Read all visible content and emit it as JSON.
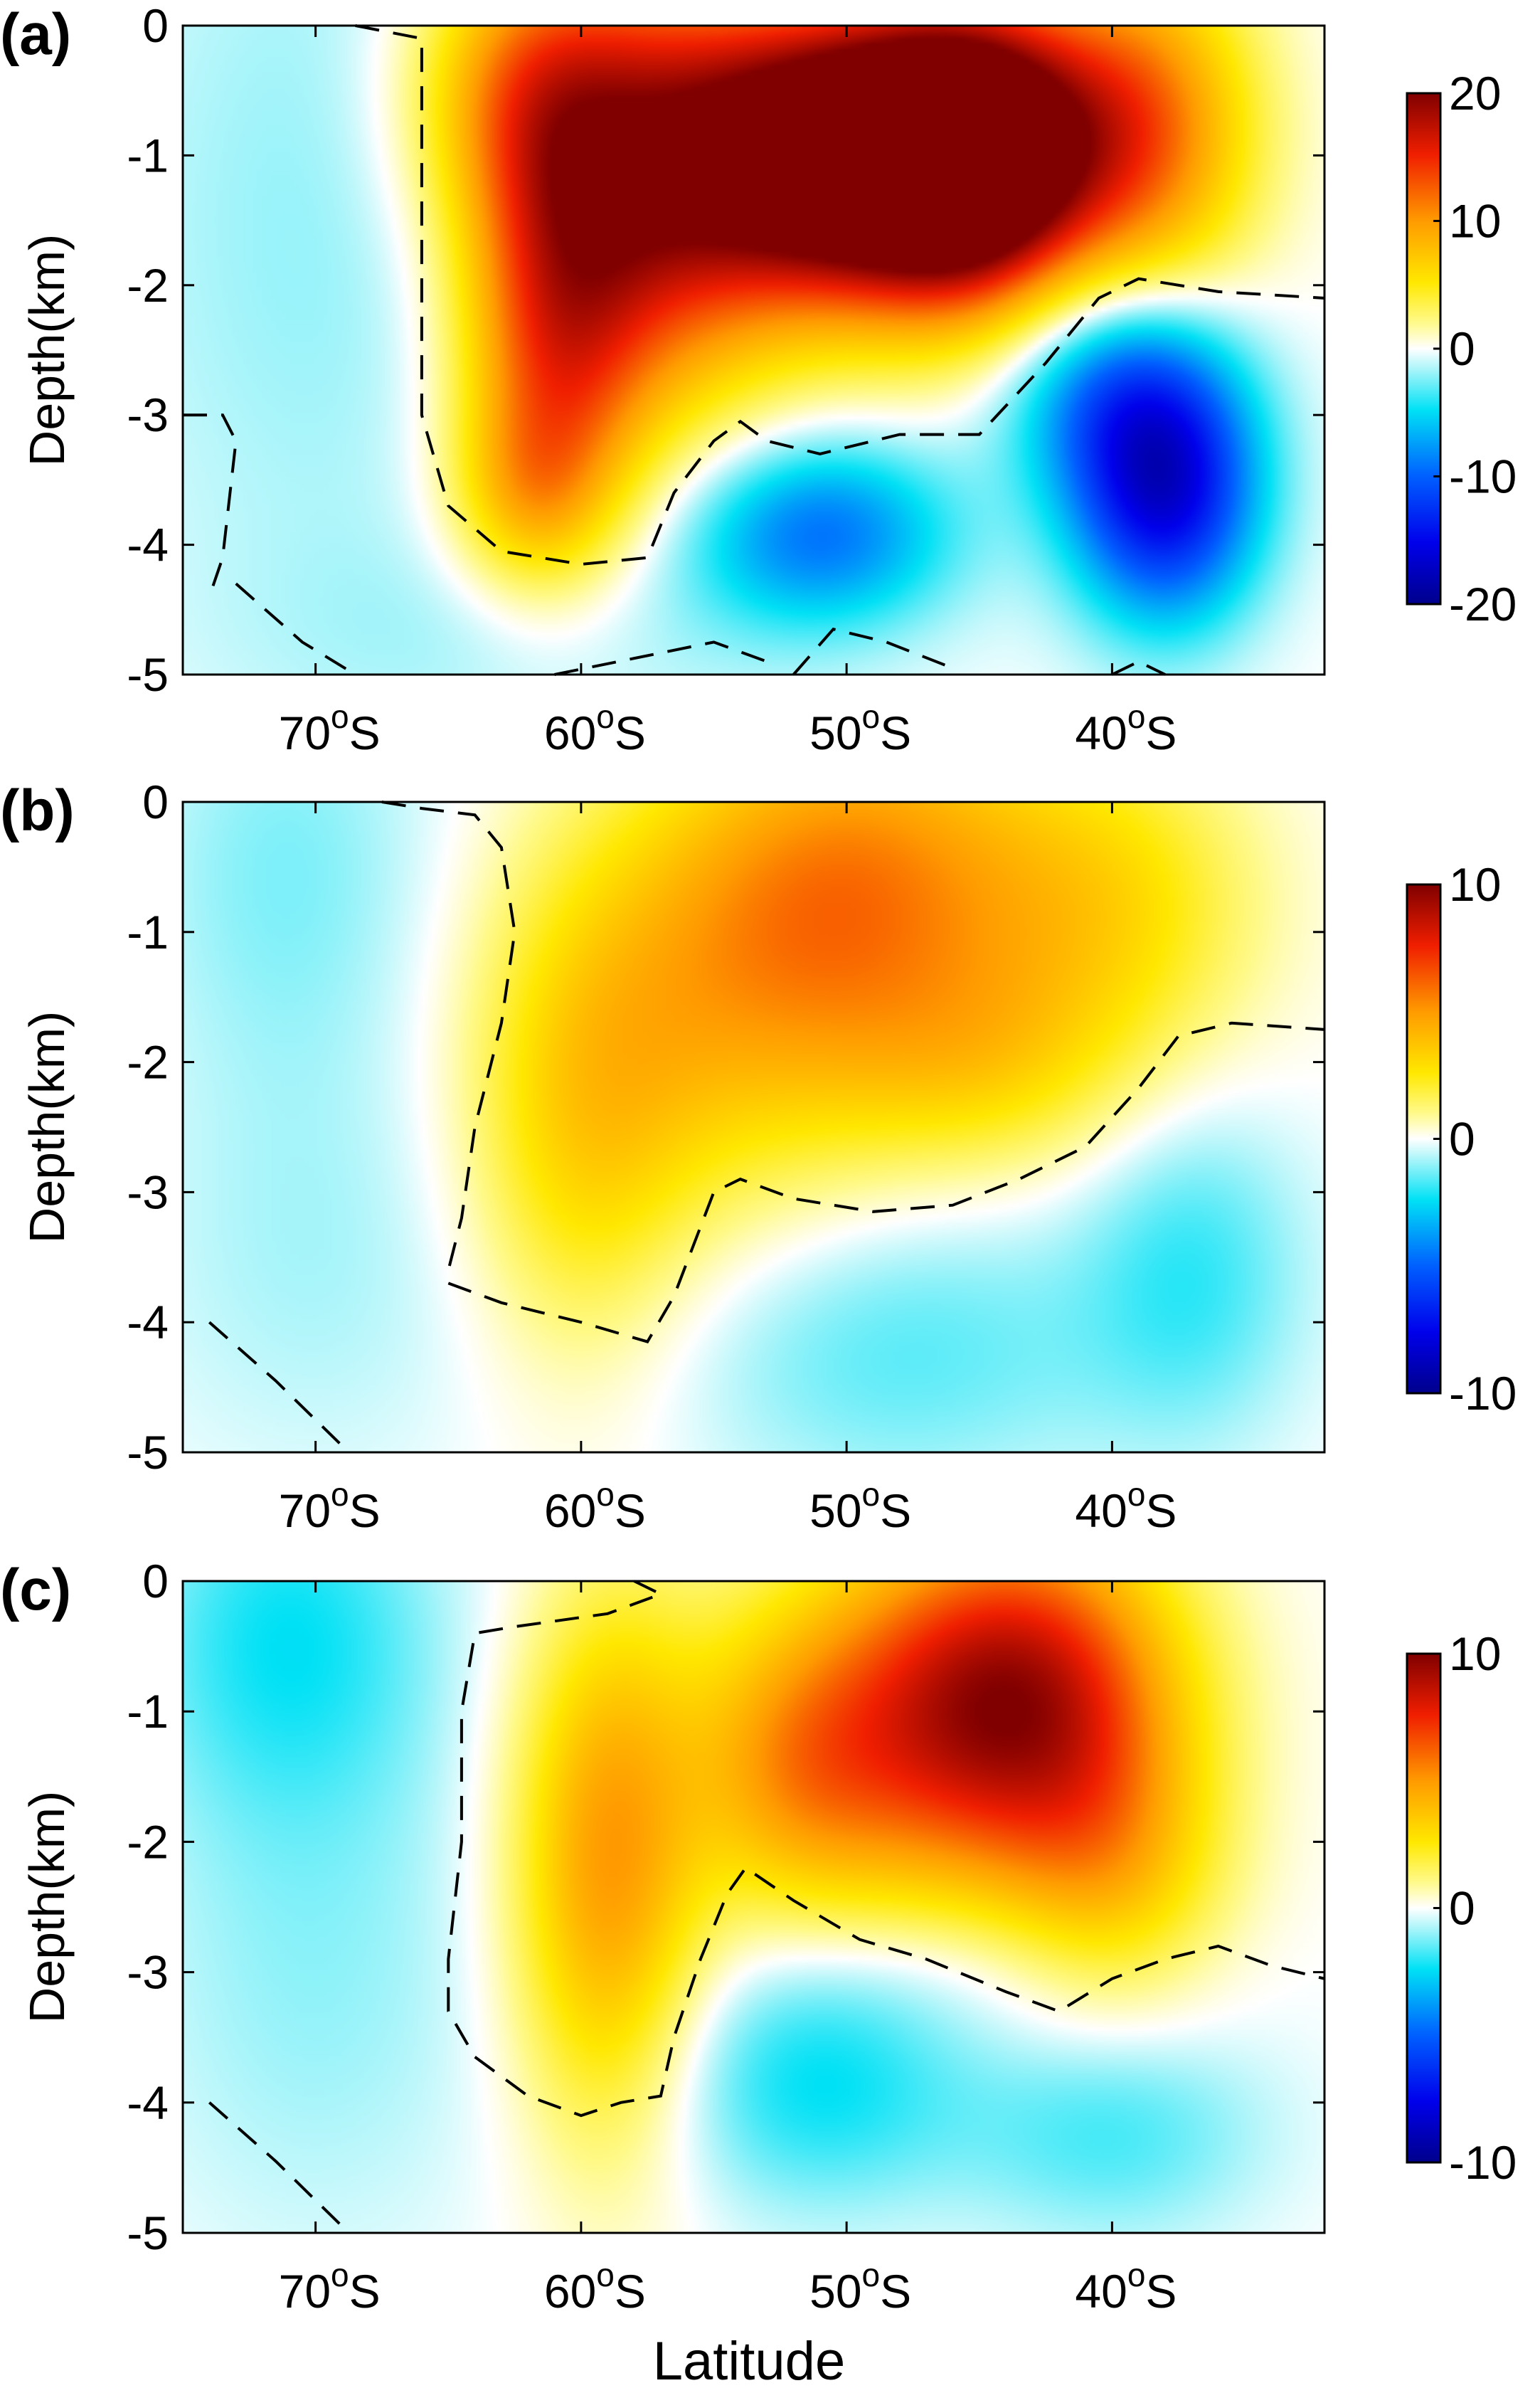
{
  "figure": {
    "xlabel": "Latitude"
  },
  "chart_data": [
    {
      "type": "heatmap",
      "panel_label": "(a)",
      "ylabel": "Depth(km)",
      "x_range": [
        -75,
        -32
      ],
      "ylim": [
        -5,
        0
      ],
      "xticks": [
        -70,
        -60,
        -50,
        -40
      ],
      "xtick_labels": [
        {
          "num": "70",
          "deg": "o",
          "hemi": "S"
        },
        {
          "num": "60",
          "deg": "o",
          "hemi": "S"
        },
        {
          "num": "50",
          "deg": "o",
          "hemi": "S"
        },
        {
          "num": "40",
          "deg": "o",
          "hemi": "S"
        }
      ],
      "yticks": [
        0,
        -1,
        -2,
        -3,
        -4,
        -5
      ],
      "ytick_labels": [
        "0",
        "-1",
        "-2",
        "-3",
        "-4",
        "-5"
      ],
      "colorbar": {
        "min": -20,
        "max": 20,
        "ticks": [
          20,
          10,
          0,
          -10,
          -20
        ],
        "tick_labels": [
          "20",
          "10",
          "0",
          "-10",
          "-20"
        ],
        "colormap": "jet-white-center"
      },
      "features": [
        {
          "lat": -50,
          "depth": -1.0,
          "value": 26,
          "sx": 4,
          "sz": 0.8
        },
        {
          "lat": -45,
          "depth": -1.0,
          "value": 22,
          "sx": 3,
          "sz": 0.8
        },
        {
          "lat": -57,
          "depth": -1.2,
          "value": 14,
          "sx": 3.5,
          "sz": 1.2
        },
        {
          "lat": -61,
          "depth": -2.4,
          "value": 12,
          "sx": 2.5,
          "sz": 1.1
        },
        {
          "lat": -62,
          "depth": -0.5,
          "value": 10,
          "sx": 3,
          "sz": 0.8
        },
        {
          "lat": -39,
          "depth": -0.8,
          "value": 12,
          "sx": 3,
          "sz": 0.9
        },
        {
          "lat": -62,
          "depth": -3.6,
          "value": 5,
          "sx": 2,
          "sz": 0.5
        },
        {
          "lat": -38,
          "depth": -3.6,
          "value": -15,
          "sx": 2.5,
          "sz": 0.7
        },
        {
          "lat": -40,
          "depth": -2.8,
          "value": -8,
          "sx": 3,
          "sz": 0.6
        },
        {
          "lat": -51,
          "depth": -3.9,
          "value": -9,
          "sx": 3.5,
          "sz": 0.5
        },
        {
          "lat": -70,
          "depth": -1.5,
          "value": -2,
          "sx": 6,
          "sz": 2.5
        },
        {
          "lat": -60,
          "depth": -4.7,
          "value": -1.5,
          "sx": 8,
          "sz": 0.6
        }
      ],
      "zero_contours": [
        [
          [
            -68.5,
            0
          ],
          [
            -66,
            -0.1
          ],
          [
            -66,
            -1.5
          ],
          [
            -66,
            -3.0
          ],
          [
            -65,
            -3.7
          ],
          [
            -63,
            -4.05
          ],
          [
            -60,
            -4.15
          ],
          [
            -57.5,
            -4.1
          ],
          [
            -56.5,
            -3.6
          ],
          [
            -55,
            -3.2
          ],
          [
            -54,
            -3.05
          ],
          [
            -53,
            -3.2
          ],
          [
            -51,
            -3.3
          ],
          [
            -48,
            -3.15
          ],
          [
            -45,
            -3.15
          ],
          [
            -42.5,
            -2.6
          ],
          [
            -40.5,
            -2.1
          ],
          [
            -39,
            -1.95
          ],
          [
            -36,
            -2.05
          ],
          [
            -32,
            -2.1
          ]
        ],
        [
          [
            -75,
            -3.0
          ],
          [
            -73.5,
            -3.0
          ],
          [
            -73,
            -3.2
          ],
          [
            -73.5,
            -4.1
          ],
          [
            -74,
            -4.4
          ]
        ],
        [
          [
            -73,
            -4.3
          ],
          [
            -70.5,
            -4.75
          ],
          [
            -68.5,
            -5.0
          ]
        ],
        [
          [
            -61,
            -5.0
          ],
          [
            -55,
            -4.75
          ],
          [
            -53,
            -4.9
          ]
        ],
        [
          [
            -52,
            -5.0
          ],
          [
            -50.5,
            -4.65
          ],
          [
            -48.5,
            -4.75
          ],
          [
            -46,
            -4.95
          ]
        ],
        [
          [
            -40,
            -5.0
          ],
          [
            -39,
            -4.9
          ],
          [
            -38,
            -5.0
          ]
        ]
      ]
    },
    {
      "type": "heatmap",
      "panel_label": "(b)",
      "ylabel": "Depth(km)",
      "x_range": [
        -75,
        -32
      ],
      "ylim": [
        -5,
        0
      ],
      "xticks": [
        -70,
        -60,
        -50,
        -40
      ],
      "xtick_labels": [
        {
          "num": "70",
          "deg": "o",
          "hemi": "S"
        },
        {
          "num": "60",
          "deg": "o",
          "hemi": "S"
        },
        {
          "num": "50",
          "deg": "o",
          "hemi": "S"
        },
        {
          "num": "40",
          "deg": "o",
          "hemi": "S"
        }
      ],
      "yticks": [
        0,
        -1,
        -2,
        -3,
        -4,
        -5
      ],
      "ytick_labels": [
        "0",
        "-1",
        "-2",
        "-3",
        "-4",
        "-5"
      ],
      "colorbar": {
        "min": -10,
        "max": 10,
        "ticks": [
          10,
          0,
          -10
        ],
        "tick_labels": [
          "10",
          "0",
          "-10"
        ],
        "colormap": "jet-white-center"
      },
      "features": [
        {
          "lat": -49,
          "depth": -0.6,
          "value": 4.5,
          "sx": 5,
          "sz": 1.0
        },
        {
          "lat": -55,
          "depth": -1.5,
          "value": 3.2,
          "sx": 5,
          "sz": 1.2
        },
        {
          "lat": -60,
          "depth": -2.6,
          "value": 2.5,
          "sx": 3,
          "sz": 1.2
        },
        {
          "lat": -40,
          "depth": -0.8,
          "value": 2.5,
          "sx": 4,
          "sz": 0.9
        },
        {
          "lat": -45,
          "depth": -2.0,
          "value": 2.0,
          "sx": 4,
          "sz": 0.6
        },
        {
          "lat": -48,
          "depth": -4.2,
          "value": -1.6,
          "sx": 6,
          "sz": 0.8
        },
        {
          "lat": -37,
          "depth": -3.6,
          "value": -1.8,
          "sx": 3,
          "sz": 0.9
        },
        {
          "lat": -71,
          "depth": -0.5,
          "value": -1.2,
          "sx": 4,
          "sz": 1.2
        },
        {
          "lat": -70,
          "depth": -3.5,
          "value": -0.8,
          "sx": 5,
          "sz": 1.2
        }
      ],
      "zero_contours": [
        [
          [
            -67.5,
            0
          ],
          [
            -66,
            -0.05
          ],
          [
            -64,
            -0.1
          ],
          [
            -63,
            -0.35
          ],
          [
            -62.5,
            -1.0
          ],
          [
            -63,
            -1.7
          ],
          [
            -64,
            -2.5
          ],
          [
            -64.5,
            -3.2
          ],
          [
            -65,
            -3.6
          ]
        ],
        [
          [
            -65,
            -3.7
          ],
          [
            -63,
            -3.85
          ],
          [
            -60,
            -4.0
          ],
          [
            -57.5,
            -4.15
          ],
          [
            -56.5,
            -3.8
          ],
          [
            -55,
            -3.0
          ],
          [
            -54,
            -2.9
          ],
          [
            -52,
            -3.05
          ],
          [
            -49,
            -3.15
          ],
          [
            -46,
            -3.1
          ],
          [
            -43.5,
            -2.9
          ],
          [
            -41,
            -2.65
          ],
          [
            -39,
            -2.2
          ],
          [
            -37.5,
            -1.8
          ],
          [
            -35.5,
            -1.7
          ],
          [
            -32,
            -1.75
          ]
        ],
        [
          [
            -74,
            -4.0
          ],
          [
            -71.5,
            -4.45
          ],
          [
            -69,
            -4.95
          ]
        ]
      ]
    },
    {
      "type": "heatmap",
      "panel_label": "(c)",
      "ylabel": "Depth(km)",
      "x_range": [
        -75,
        -32
      ],
      "ylim": [
        -5,
        0
      ],
      "xticks": [
        -70,
        -60,
        -50,
        -40
      ],
      "xtick_labels": [
        {
          "num": "70",
          "deg": "o",
          "hemi": "S"
        },
        {
          "num": "60",
          "deg": "o",
          "hemi": "S"
        },
        {
          "num": "50",
          "deg": "o",
          "hemi": "S"
        },
        {
          "num": "40",
          "deg": "o",
          "hemi": "S"
        }
      ],
      "yticks": [
        0,
        -1,
        -2,
        -3,
        -4,
        -5
      ],
      "ytick_labels": [
        "0",
        "-1",
        "-2",
        "-3",
        "-4",
        "-5"
      ],
      "colorbar": {
        "min": -10,
        "max": 10,
        "ticks": [
          10,
          0,
          -10
        ],
        "tick_labels": [
          "10",
          "0",
          "-10"
        ],
        "colormap": "jet-white-center"
      },
      "features": [
        {
          "lat": -43,
          "depth": -0.8,
          "value": 6.5,
          "sx": 4,
          "sz": 0.9
        },
        {
          "lat": -48,
          "depth": -1.2,
          "value": 5.0,
          "sx": 5,
          "sz": 1.0
        },
        {
          "lat": -59,
          "depth": -2.2,
          "value": 4.8,
          "sx": 2.5,
          "sz": 1.4
        },
        {
          "lat": -40,
          "depth": -2.2,
          "value": 3.0,
          "sx": 3,
          "sz": 0.8
        },
        {
          "lat": -52,
          "depth": -1.5,
          "value": 2.0,
          "sx": 2.5,
          "sz": 0.7
        },
        {
          "lat": -51,
          "depth": -3.8,
          "value": -2.5,
          "sx": 4,
          "sz": 0.7
        },
        {
          "lat": -40,
          "depth": -4.2,
          "value": -1.8,
          "sx": 4,
          "sz": 0.6
        },
        {
          "lat": -71,
          "depth": -0.4,
          "value": -2.2,
          "sx": 4,
          "sz": 1.0
        },
        {
          "lat": -70,
          "depth": -3.0,
          "value": -1.0,
          "sx": 5,
          "sz": 1.5
        },
        {
          "lat": -44,
          "depth": -2.9,
          "value": -0.7,
          "sx": 5,
          "sz": 0.4
        }
      ],
      "zero_contours": [
        [
          [
            -58,
            0
          ],
          [
            -57,
            -0.1
          ],
          [
            -59,
            -0.25
          ],
          [
            -62.5,
            -0.35
          ],
          [
            -64,
            -0.4
          ],
          [
            -64.5,
            -1.0
          ],
          [
            -64.5,
            -2.0
          ],
          [
            -65,
            -2.9
          ],
          [
            -65,
            -3.3
          ],
          [
            -64,
            -3.65
          ],
          [
            -62,
            -3.95
          ],
          [
            -60,
            -4.1
          ],
          [
            -58.5,
            -4.0
          ],
          [
            -57,
            -3.95
          ],
          [
            -56.5,
            -3.5
          ],
          [
            -55.5,
            -2.9
          ],
          [
            -54.5,
            -2.4
          ],
          [
            -53.8,
            -2.2
          ],
          [
            -52,
            -2.45
          ],
          [
            -49.5,
            -2.75
          ],
          [
            -47,
            -2.9
          ],
          [
            -44,
            -3.15
          ],
          [
            -42,
            -3.3
          ],
          [
            -40,
            -3.05
          ],
          [
            -38,
            -2.9
          ],
          [
            -36,
            -2.8
          ],
          [
            -34,
            -2.95
          ],
          [
            -32,
            -3.05
          ]
        ],
        [
          [
            -74,
            -4.0
          ],
          [
            -71.5,
            -4.45
          ],
          [
            -69,
            -4.95
          ]
        ]
      ]
    }
  ]
}
